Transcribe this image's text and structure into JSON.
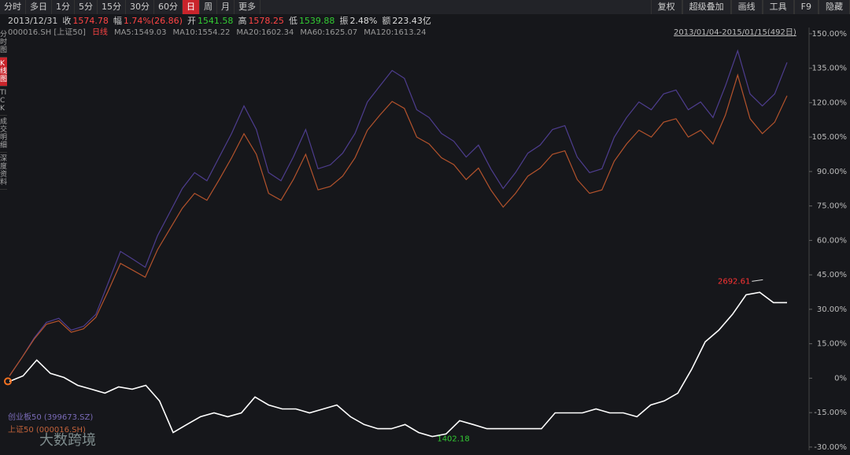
{
  "ui": {
    "toolbar_left": [
      "分时",
      "多日",
      "1分",
      "5分",
      "15分",
      "30分",
      "60分",
      "日",
      "周",
      "月",
      "更多"
    ],
    "toolbar_active": 7,
    "toolbar_right": [
      "复权",
      "超级叠加",
      "画线",
      "工具",
      "F9",
      "隐藏"
    ],
    "quote": [
      {
        "label": "2013/12/31",
        "value": null
      },
      {
        "label": "收",
        "value": "1574.78",
        "color": "#ff4444"
      },
      {
        "label": "幅",
        "value": "1.74%(26.86)",
        "color": "#ff4444"
      },
      {
        "label": "开",
        "value": "1541.58",
        "color": "#33cc33"
      },
      {
        "label": "高",
        "value": "1578.25",
        "color": "#ff4444"
      },
      {
        "label": "低",
        "value": "1539.88",
        "color": "#33cc33"
      },
      {
        "label": "振",
        "value": "2.48%",
        "color": "#dddddd"
      },
      {
        "label": "额",
        "value": "223.43亿",
        "color": "#dddddd"
      }
    ],
    "info_code": "000016.SH [上证50]",
    "info_period": "日线",
    "info_ma": [
      "MA5:1549.03",
      "MA10:1554.22",
      "MA20:1602.34",
      "MA60:1625.07",
      "MA120:1613.24"
    ],
    "range": "2013/01/04-2015/01/15(492日)",
    "side_tabs": [
      "分时图",
      "K线图",
      "TICK",
      "成交明细",
      "深度资料"
    ],
    "watermark": "大数跨境"
  },
  "chart_data": {
    "type": "line",
    "grid": false,
    "ylim": [
      -31.4,
      152.7
    ],
    "yticks": [
      {
        "value": 150,
        "label": "150.00%"
      },
      {
        "value": 135,
        "label": "135.00%"
      },
      {
        "value": 120,
        "label": "120.00%"
      },
      {
        "value": 105,
        "label": "105.00%"
      },
      {
        "value": 90,
        "label": "90.00%"
      },
      {
        "value": 75,
        "label": "75.00%"
      },
      {
        "value": 60,
        "label": "60.00%"
      },
      {
        "value": 45,
        "label": "45.00%"
      },
      {
        "value": 30,
        "label": "30.00%"
      },
      {
        "value": 15,
        "label": "15.00%"
      },
      {
        "value": 0,
        "label": "0%"
      },
      {
        "value": -15,
        "label": "-15.00%"
      },
      {
        "value": -30,
        "label": "-30.00%"
      }
    ],
    "series": [
      {
        "name": "创业板50 (399673.SZ)",
        "color": "#4e3d8f",
        "values": [
          1.0,
          8.9,
          17.5,
          24.3,
          26.1,
          20.9,
          22.6,
          27.8,
          41.5,
          55.2,
          51.8,
          48.3,
          62.1,
          72.3,
          82.6,
          89.5,
          86.0,
          96.3,
          106.6,
          118.6,
          108.3,
          89.5,
          86.0,
          96.3,
          108.3,
          91.2,
          92.9,
          98.0,
          106.6,
          120.3,
          127.2,
          134.0,
          130.6,
          116.9,
          113.5,
          106.6,
          103.2,
          96.3,
          101.5,
          91.2,
          82.6,
          89.5,
          98.0,
          101.5,
          108.3,
          110.0,
          96.3,
          89.5,
          91.2,
          104.9,
          113.5,
          120.3,
          116.9,
          123.8,
          125.5,
          116.9,
          120.3,
          113.5,
          127.2,
          142.6,
          123.8,
          118.6,
          123.8,
          137.5
        ]
      },
      {
        "name": "上证50 (000016.SH)",
        "color": "#b4532c",
        "values": [
          1,
          8.9,
          17,
          23.5,
          25,
          20,
          21.5,
          26.5,
          38,
          50,
          47,
          44,
          56,
          65,
          74,
          80.5,
          77.5,
          86.5,
          96,
          106.5,
          97.5,
          80.5,
          77.5,
          86.5,
          97.5,
          82,
          83.5,
          88,
          96,
          108,
          114.5,
          120.5,
          117.5,
          105,
          102,
          96,
          93,
          86.5,
          91.5,
          82,
          74.5,
          80.5,
          88,
          91.5,
          97.5,
          99,
          86.5,
          80.5,
          82,
          94.5,
          102,
          108,
          105,
          111.5,
          113,
          105,
          108,
          102,
          114.5,
          132,
          113,
          106.5,
          111.5,
          123
        ]
      },
      {
        "color": "#ffffff",
        "values": [
          -1.4,
          1.0,
          7.9,
          2.1,
          0.3,
          -3.1,
          -4.8,
          -6.5,
          -3.8,
          -4.8,
          -3.1,
          -9.9,
          -23.7,
          -20.2,
          -16.8,
          -15.1,
          -16.8,
          -15.1,
          -8.2,
          -11.7,
          -13.4,
          -13.4,
          -15.1,
          -13.4,
          -11.7,
          -16.8,
          -20.2,
          -22.0,
          -22.0,
          -20.2,
          -23.7,
          -25.4,
          -24.3,
          -18.5,
          -20.2,
          -22.0,
          -22.0,
          -22.0,
          -22.0,
          -22.0,
          -15.1,
          -15.1,
          -15.1,
          -13.4,
          -15.1,
          -15.1,
          -16.8,
          -11.7,
          -9.9,
          -6.5,
          3.8,
          15.8,
          20.9,
          27.8,
          36.3,
          37.4,
          32.9,
          32.9
        ]
      }
    ],
    "annotations": [
      {
        "text": "2692.61",
        "color": "#ff3333"
      },
      {
        "text": "1402.18",
        "color": "#33cc33"
      }
    ]
  }
}
